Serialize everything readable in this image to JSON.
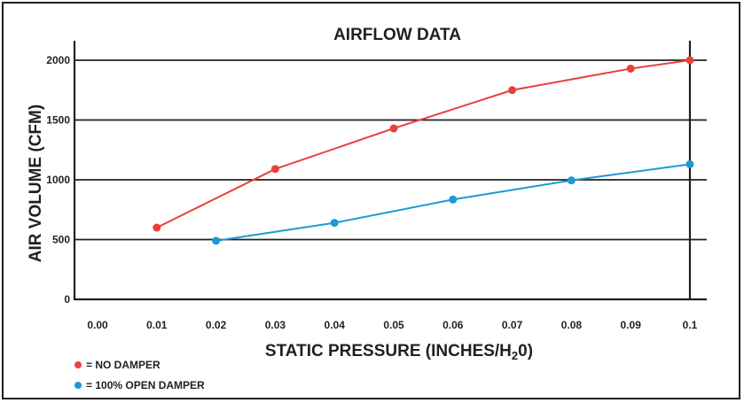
{
  "chart_data": {
    "type": "line",
    "title": "AIRFLOW DATA",
    "xlabel_main": "STATIC PRESSURE (INCHES/H",
    "xlabel_sub": "2",
    "xlabel_end": "0)",
    "ylabel": "AIR VOLUME (CFM)",
    "xlim": [
      0,
      0.1
    ],
    "ylim": [
      0,
      2000
    ],
    "x_ticks": [
      "0.00",
      "0.01",
      "0.02",
      "0.03",
      "0.04",
      "0.05",
      "0.06",
      "0.07",
      "0.08",
      "0.09",
      "0.1"
    ],
    "y_ticks": [
      "0",
      "500",
      "1000",
      "1500",
      "2000"
    ],
    "grid": "horizontal",
    "series": [
      {
        "name": "= NO DAMPER",
        "color": "#e8413b",
        "x": [
          0.01,
          0.03,
          0.05,
          0.07,
          0.09,
          0.1
        ],
        "y": [
          600,
          1090,
          1430,
          1750,
          1930,
          2000
        ]
      },
      {
        "name": "= 100% OPEN DAMPER",
        "color": "#1a9ad6",
        "x": [
          0.02,
          0.04,
          0.06,
          0.08,
          0.1
        ],
        "y": [
          490,
          640,
          835,
          995,
          1130
        ]
      }
    ]
  }
}
